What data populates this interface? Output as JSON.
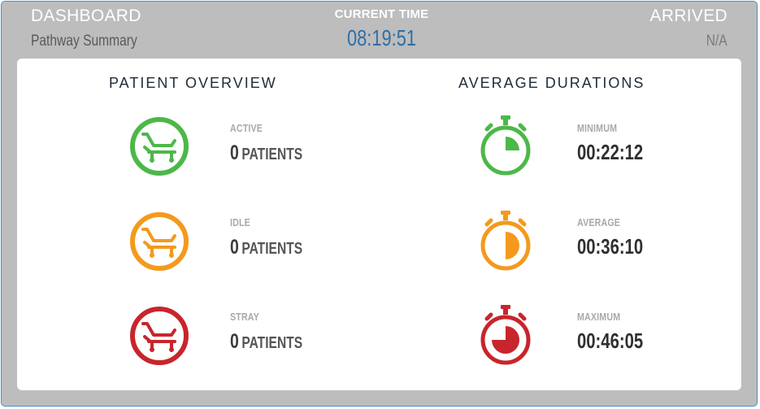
{
  "header": {
    "title": "DASHBOARD",
    "subtitle": "Pathway Summary",
    "current_time_label": "CURRENT TIME",
    "current_time": "08:19:51",
    "arrived_label": "ARRIVED",
    "arrived_value": "N/A"
  },
  "patient_overview": {
    "title": "PATIENT OVERVIEW",
    "items": [
      {
        "label": "ACTIVE",
        "count": "0",
        "unit": "PATIENTS",
        "color": "#4cb848",
        "icon": "bed-icon"
      },
      {
        "label": "IDLE",
        "count": "0",
        "unit": "PATIENTS",
        "color": "#f39a1e",
        "icon": "bed-icon"
      },
      {
        "label": "STRAY",
        "count": "0",
        "unit": "PATIENTS",
        "color": "#c8252c",
        "icon": "bed-icon"
      }
    ]
  },
  "average_durations": {
    "title": "AVERAGE DURATIONS",
    "items": [
      {
        "label": "MINIMUM",
        "value": "00:22:12",
        "color": "#4cb848",
        "icon": "stopwatch-icon",
        "fill_fraction": 0.25
      },
      {
        "label": "AVERAGE",
        "value": "00:36:10",
        "color": "#f39a1e",
        "icon": "stopwatch-icon",
        "fill_fraction": 0.5
      },
      {
        "label": "MAXIMUM",
        "value": "00:46:05",
        "color": "#c8252c",
        "icon": "stopwatch-icon",
        "fill_fraction": 0.75
      }
    ]
  }
}
